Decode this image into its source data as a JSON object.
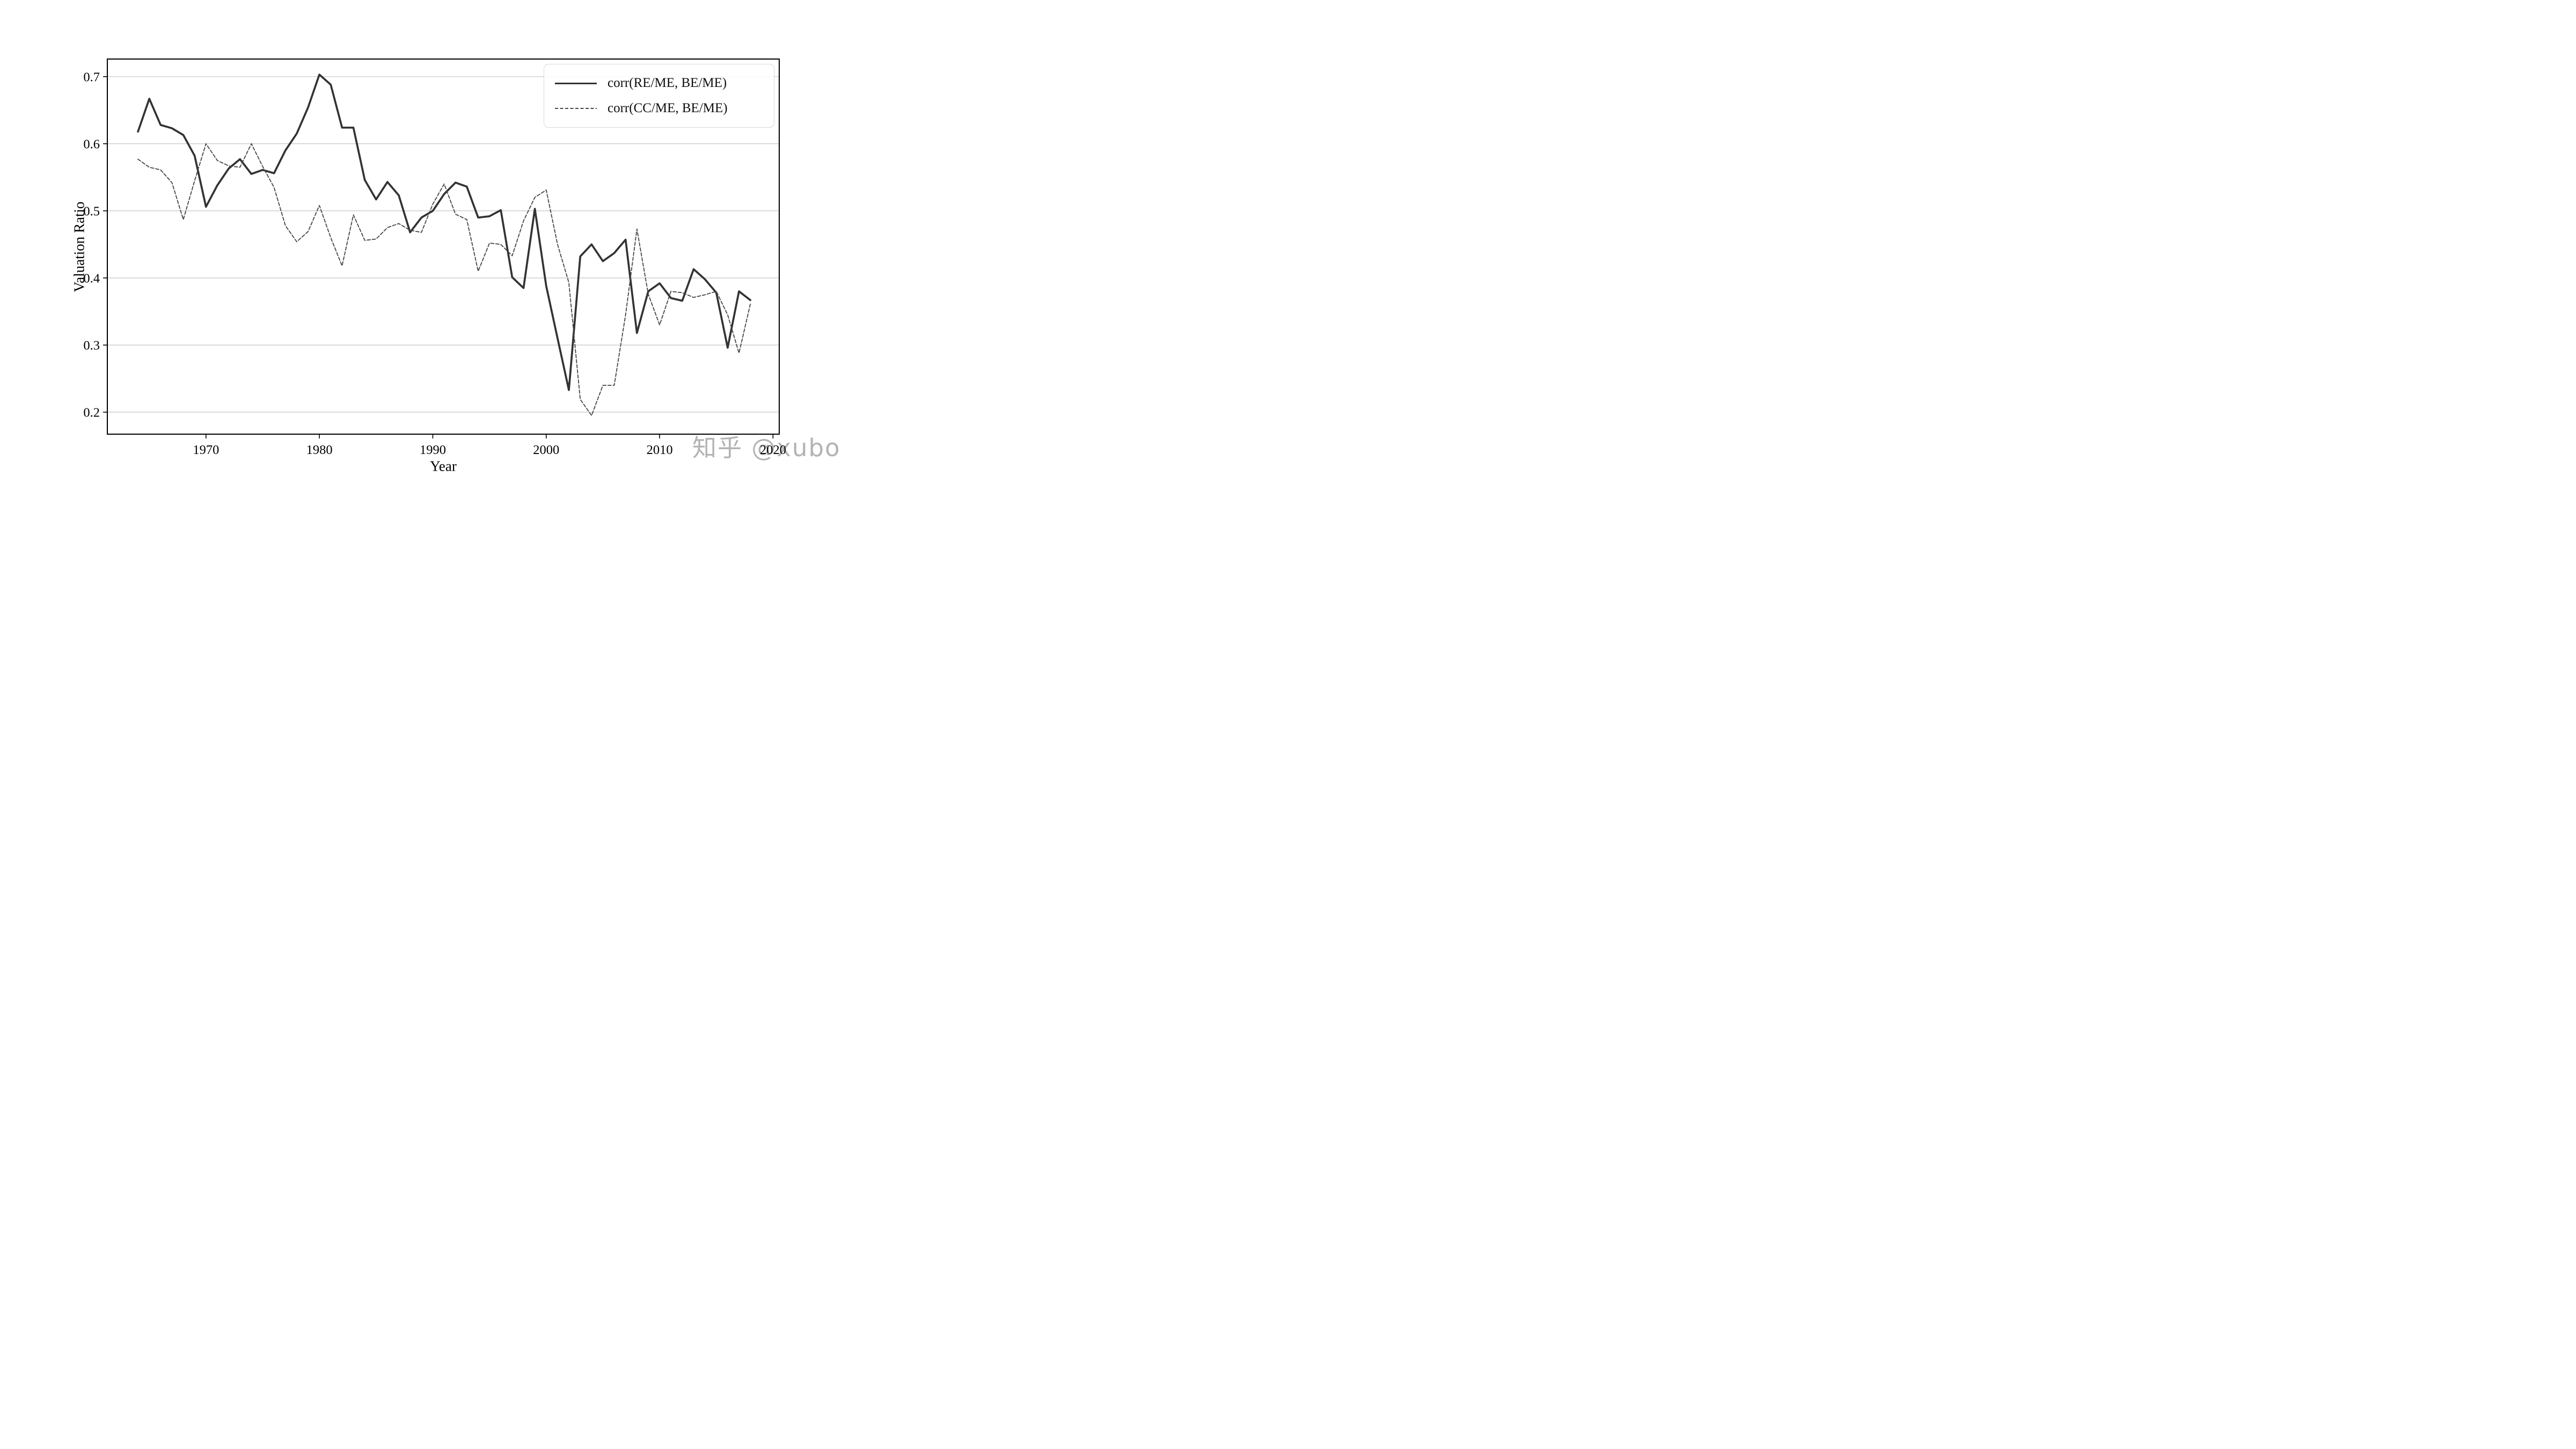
{
  "watermark": "知乎 @xubo",
  "chart_data": {
    "type": "line",
    "title": "",
    "xlabel": "Year",
    "ylabel": "Valuation Ratio",
    "x_tick_labels": [
      "1970",
      "1980",
      "1990",
      "2000",
      "2010",
      "2020"
    ],
    "x_ticks": [
      1970,
      1980,
      1990,
      2000,
      2010,
      2020
    ],
    "y_tick_labels": [
      "0.2",
      "0.3",
      "0.4",
      "0.5",
      "0.6",
      "0.7"
    ],
    "y_ticks": [
      0.2,
      0.3,
      0.4,
      0.5,
      0.6,
      0.7
    ],
    "xlim": [
      1961.3,
      2020.55
    ],
    "ylim": [
      0.1672,
      0.7262
    ],
    "grid": "horizontal",
    "legend_location": "upper right",
    "x": [
      1964,
      1965,
      1966,
      1967,
      1968,
      1969,
      1970,
      1971,
      1972,
      1973,
      1974,
      1975,
      1976,
      1977,
      1978,
      1979,
      1980,
      1981,
      1982,
      1983,
      1984,
      1985,
      1986,
      1987,
      1988,
      1989,
      1990,
      1991,
      1992,
      1993,
      1994,
      1995,
      1996,
      1997,
      1998,
      1999,
      2000,
      2001,
      2002,
      2003,
      2004,
      2005,
      2006,
      2007,
      2008,
      2009,
      2010,
      2011,
      2012,
      2013,
      2014,
      2015,
      2016,
      2017,
      2018
    ],
    "series": [
      {
        "name": "corr(RE/ME, BE/ME)",
        "style": "solid",
        "color": "#333333",
        "values": [
          0.618,
          0.667,
          0.628,
          0.623,
          0.613,
          0.582,
          0.506,
          0.538,
          0.563,
          0.577,
          0.555,
          0.561,
          0.556,
          0.59,
          0.615,
          0.654,
          0.703,
          0.688,
          0.624,
          0.624,
          0.546,
          0.517,
          0.543,
          0.523,
          0.468,
          0.49,
          0.5,
          0.525,
          0.542,
          0.536,
          0.49,
          0.492,
          0.501,
          0.401,
          0.385,
          0.503,
          0.388,
          0.31,
          0.233,
          0.432,
          0.45,
          0.425,
          0.437,
          0.457,
          0.318,
          0.38,
          0.392,
          0.37,
          0.366,
          0.413,
          0.398,
          0.378,
          0.296,
          0.38,
          0.367
        ]
      },
      {
        "name": "corr(CC/ME, BE/ME)",
        "style": "dashed",
        "color": "#454545",
        "values": [
          0.577,
          0.565,
          0.561,
          0.542,
          0.487,
          0.545,
          0.6,
          0.575,
          0.567,
          0.565,
          0.6,
          0.566,
          0.535,
          0.478,
          0.454,
          0.469,
          0.508,
          0.46,
          0.418,
          0.494,
          0.456,
          0.458,
          0.475,
          0.481,
          0.471,
          0.468,
          0.51,
          0.54,
          0.495,
          0.487,
          0.41,
          0.452,
          0.45,
          0.433,
          0.485,
          0.52,
          0.531,
          0.45,
          0.393,
          0.219,
          0.195,
          0.24,
          0.24,
          0.345,
          0.473,
          0.376,
          0.33,
          0.38,
          0.378,
          0.371,
          0.375,
          0.38,
          0.345,
          0.288,
          0.361
        ]
      }
    ]
  }
}
